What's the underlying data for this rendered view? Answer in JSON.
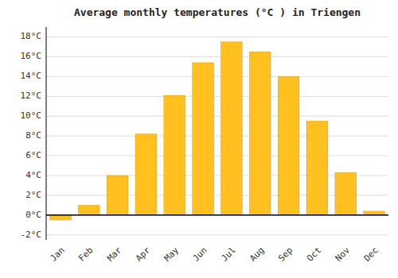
{
  "chart_data": {
    "type": "bar",
    "title": "Average monthly temperatures (°C ) in Triengen",
    "categories": [
      "Jan",
      "Feb",
      "Mar",
      "Apr",
      "May",
      "Jun",
      "Jul",
      "Aug",
      "Sep",
      "Oct",
      "Nov",
      "Dec"
    ],
    "values": [
      -0.5,
      1.0,
      4.0,
      8.2,
      12.1,
      15.4,
      17.5,
      16.5,
      14.0,
      9.5,
      4.3,
      0.4
    ],
    "color": "#FFC020",
    "ylim": [
      -2.5,
      19
    ],
    "yticks": [
      {
        "value": -2,
        "label": "-2°C"
      },
      {
        "value": 0,
        "label": "0°C"
      },
      {
        "value": 2,
        "label": "2°C"
      },
      {
        "value": 4,
        "label": "4°C"
      },
      {
        "value": 6,
        "label": "6°C"
      },
      {
        "value": 8,
        "label": "8°C"
      },
      {
        "value": 10,
        "label": "10°C"
      },
      {
        "value": 12,
        "label": "12°C"
      },
      {
        "value": 14,
        "label": "14°C"
      },
      {
        "value": 16,
        "label": "16°C"
      },
      {
        "value": 18,
        "label": "18°C"
      }
    ],
    "grid": true
  }
}
